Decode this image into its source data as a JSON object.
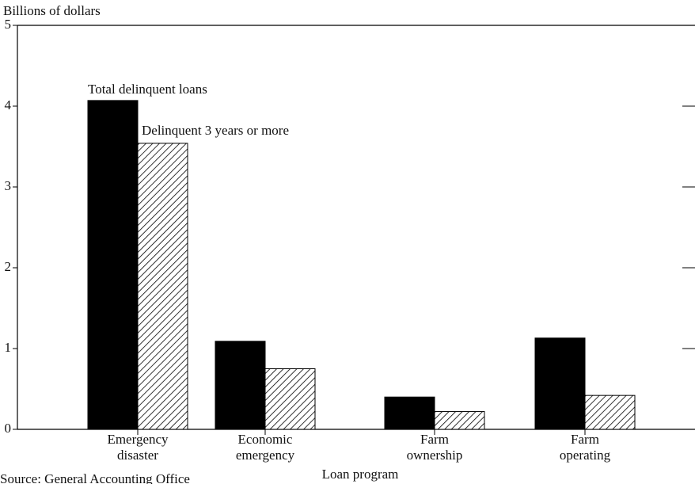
{
  "chart_data": {
    "type": "bar",
    "y_label": "Billions of dollars",
    "x_label": "Loan program",
    "source": "Source: General Accounting Office",
    "categories": [
      "Emergency disaster",
      "Economic emergency",
      "Farm ownership",
      "Farm operating"
    ],
    "series": [
      {
        "name": "Total delinquent loans",
        "color": "#000000",
        "fill": "solid",
        "values": [
          4.07,
          1.09,
          0.4,
          1.13
        ]
      },
      {
        "name": "Delinquent 3 years or more",
        "color": "#000000",
        "fill": "hatch",
        "values": [
          3.54,
          0.75,
          0.22,
          0.42
        ]
      }
    ],
    "ylim": [
      0,
      5
    ],
    "yticks": [
      0,
      1,
      2,
      3,
      4,
      5
    ]
  }
}
